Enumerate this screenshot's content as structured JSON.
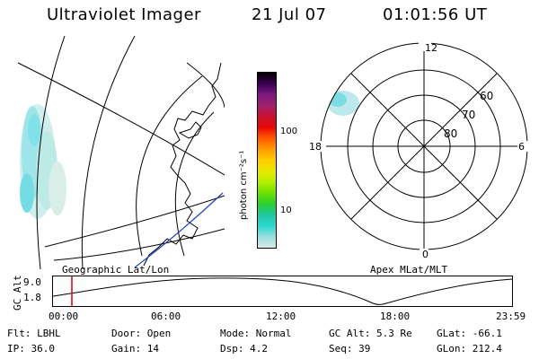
{
  "header": {
    "instrument": "Ultraviolet Imager",
    "date": "21 Jul 07",
    "time": "01:01:56 UT"
  },
  "colorbar": {
    "unit_label": "photon cm⁻²s⁻¹",
    "ticks": [
      "100",
      "10"
    ],
    "colors": [
      "#000000",
      "#3a0050",
      "#7a1a80",
      "#a0206a",
      "#c81030",
      "#e80808",
      "#ff5a00",
      "#ff9a00",
      "#ffcc00",
      "#e8e800",
      "#b4f000",
      "#6ce000",
      "#28d030",
      "#20c8a0",
      "#28d8d0",
      "#98e0e0",
      "#d8e8e8"
    ]
  },
  "left_panel": {
    "caption": "Geographic Lat/Lon"
  },
  "right_panel": {
    "caption": "Apex MLat/MLT",
    "mlt_labels": {
      "top": "12",
      "bottom": "0",
      "left": "18",
      "right": "6"
    },
    "lat_labels": [
      "60",
      "70",
      "80"
    ]
  },
  "altitude_plot": {
    "ylabel": "GC Alt",
    "yticks": [
      "9.0",
      "1.8"
    ],
    "xticks": [
      "00:00",
      "06:00",
      "12:00",
      "18:00",
      "23:59"
    ],
    "marker_color": "#e00000"
  },
  "status": {
    "flt_key": "Flt:",
    "flt_val": "LBHL",
    "door_key": "Door:",
    "door_val": "Open",
    "mode_key": "Mode:",
    "mode_val": "Normal",
    "gcalt_key": "GC Alt:",
    "gcalt_val": "5.3 Re",
    "glat_key": "GLat:",
    "glat_val": "-66.1",
    "ip_key": "IP:",
    "ip_val": "36.0",
    "gain_key": "Gain:",
    "gain_val": "14",
    "dsp_key": "Dsp:",
    "dsp_val": "4.2",
    "seq_key": "Seq:",
    "seq_val": "39",
    "glon_key": "GLon:",
    "glon_val": "212.4"
  }
}
